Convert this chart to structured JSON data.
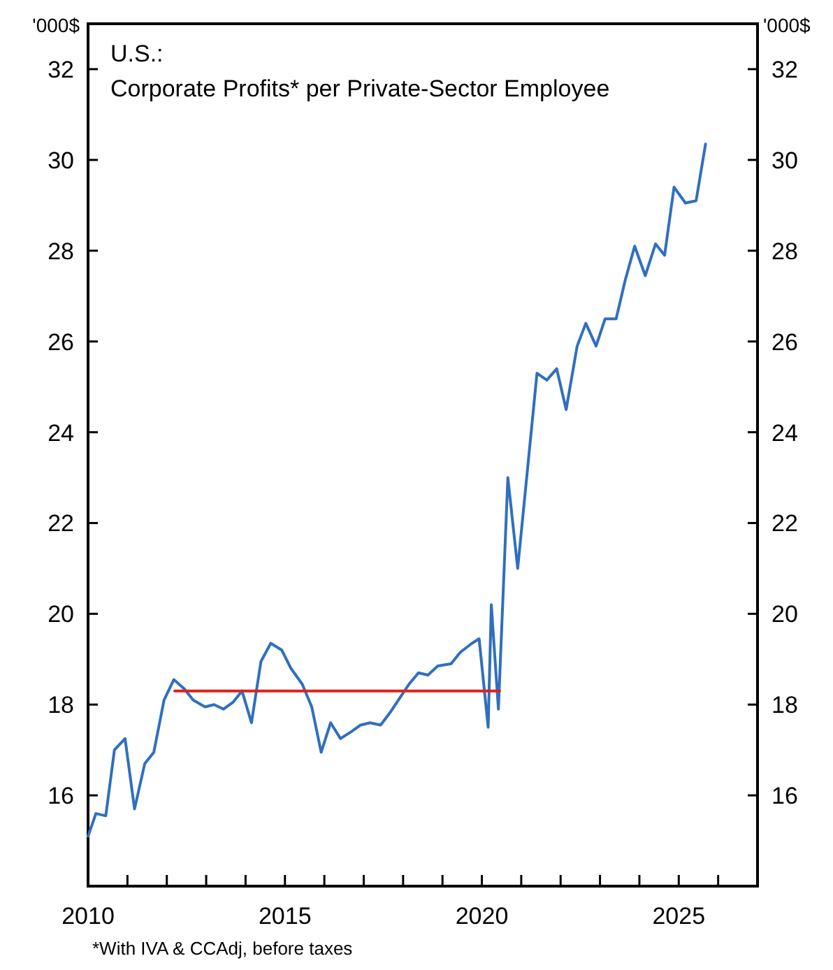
{
  "chart_data": {
    "type": "line",
    "title": "U.S.:",
    "subtitle": "Corporate Profits* per Private-Sector Employee",
    "ylabel": "'000$",
    "y2label": "'000$",
    "annotations": [
      "*With IVA & CCAdj, before taxes"
    ],
    "xlim": [
      2010,
      2027
    ],
    "ylim": [
      14,
      33
    ],
    "y2lim": [
      14,
      33
    ],
    "xticks": [
      2010,
      {
        "value": 2011,
        "label": null
      },
      {
        "value": 2012,
        "label": null
      },
      {
        "value": 2013,
        "label": null
      },
      {
        "value": 2014,
        "label": null
      },
      2015,
      {
        "value": 2016,
        "label": null
      },
      {
        "value": 2017,
        "label": null
      },
      {
        "value": 2018,
        "label": null
      },
      {
        "value": 2019,
        "label": null
      },
      2020,
      {
        "value": 2021,
        "label": null
      },
      {
        "value": 2022,
        "label": null
      },
      {
        "value": 2023,
        "label": null
      },
      {
        "value": 2024,
        "label": null
      },
      2025,
      {
        "value": 2026,
        "label": null
      }
    ],
    "yticks": [
      16,
      18,
      20,
      22,
      24,
      26,
      28,
      30,
      32
    ],
    "y2ticks": [
      16,
      18,
      20,
      22,
      24,
      26,
      28,
      30,
      32
    ],
    "grid": false,
    "marker": "none",
    "line_style": "solid",
    "series": [
      {
        "color": "#2f6fbf",
        "x": [
          2010.0,
          2010.2,
          2010.45,
          2010.67,
          2010.94,
          2011.18,
          2011.44,
          2011.67,
          2011.93,
          2012.18,
          2012.44,
          2012.67,
          2012.97,
          2013.2,
          2013.44,
          2013.68,
          2013.91,
          2014.15,
          2014.39,
          2014.64,
          2014.92,
          2015.15,
          2015.44,
          2015.68,
          2015.92,
          2016.16,
          2016.41,
          2016.68,
          2016.92,
          2017.16,
          2017.43,
          2017.69,
          2017.92,
          2018.15,
          2018.39,
          2018.63,
          2018.88,
          2019.22,
          2019.45,
          2019.75,
          2019.93,
          2020.16,
          2020.24,
          2020.42,
          2020.66,
          2020.91,
          2021.4,
          2021.65,
          2021.9,
          2022.14,
          2022.42,
          2022.64,
          2022.9,
          2023.13,
          2023.41,
          2023.64,
          2023.88,
          2024.15,
          2024.41,
          2024.64,
          2024.88,
          2025.17,
          2025.44,
          2025.68
        ],
        "values": [
          15.1,
          15.6,
          15.55,
          17.0,
          17.25,
          15.7,
          16.7,
          16.95,
          18.1,
          18.55,
          18.35,
          18.1,
          17.95,
          18.0,
          17.9,
          18.05,
          18.3,
          17.6,
          18.95,
          19.35,
          19.2,
          18.8,
          18.45,
          17.95,
          16.95,
          17.6,
          17.25,
          17.4,
          17.55,
          17.6,
          17.55,
          17.85,
          18.15,
          18.45,
          18.7,
          18.65,
          18.85,
          18.9,
          19.15,
          19.35,
          19.45,
          17.5,
          20.2,
          17.9,
          23.0,
          21.0,
          25.3,
          25.15,
          25.4,
          24.5,
          25.9,
          26.4,
          25.9,
          26.5,
          26.5,
          27.35,
          28.1,
          27.45,
          28.15,
          27.9,
          29.4,
          29.05,
          29.1,
          30.35
        ]
      },
      {
        "type": "line",
        "color": "#e0201b",
        "x": [
          2012.2,
          2020.45
        ],
        "values": [
          18.3,
          18.3
        ]
      }
    ]
  }
}
